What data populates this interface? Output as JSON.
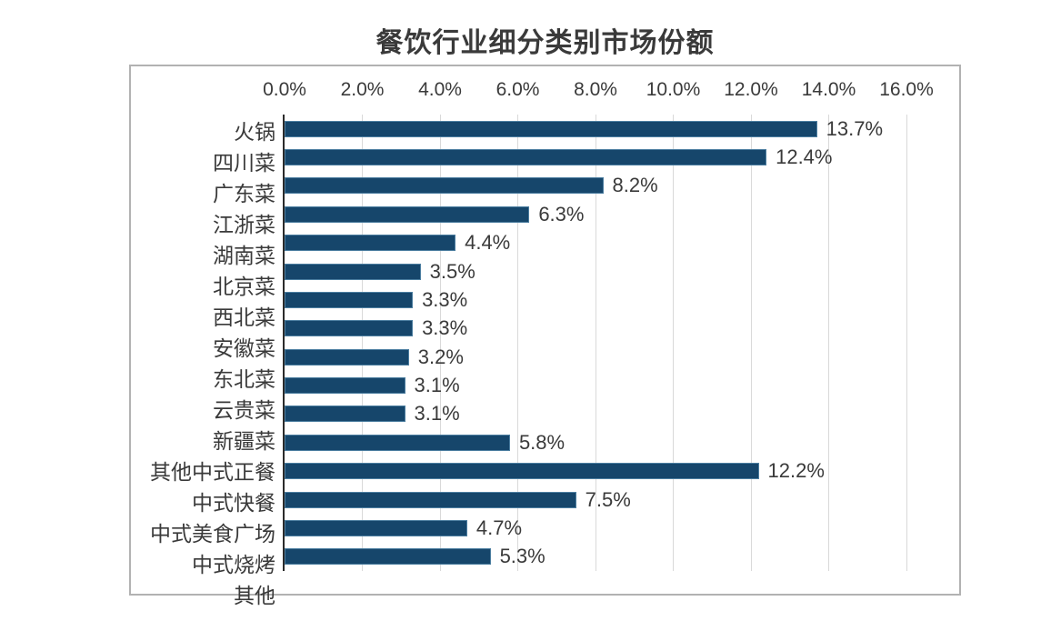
{
  "chart_data": {
    "type": "bar",
    "orientation": "horizontal",
    "title": "餐饮行业细分类别市场份额",
    "categories": [
      "火锅",
      "四川菜",
      "广东菜",
      "江浙菜",
      "湖南菜",
      "北京菜",
      "西北菜",
      "安徽菜",
      "东北菜",
      "云贵菜",
      "新疆菜",
      "其他中式正餐",
      "中式快餐",
      "中式美食广场",
      "中式烧烤",
      "其他"
    ],
    "values": [
      13.7,
      12.4,
      8.2,
      6.3,
      4.4,
      3.5,
      3.3,
      3.3,
      3.2,
      3.1,
      3.1,
      5.8,
      12.2,
      7.5,
      4.7,
      5.3
    ],
    "value_labels": [
      "13.7%",
      "12.4%",
      "8.2%",
      "6.3%",
      "4.4%",
      "3.5%",
      "3.3%",
      "3.3%",
      "3.2%",
      "3.1%",
      "3.1%",
      "5.8%",
      "12.2%",
      "7.5%",
      "4.7%",
      "5.3%"
    ],
    "x_ticks": [
      "0.0%",
      "2.0%",
      "4.0%",
      "6.0%",
      "8.0%",
      "10.0%",
      "12.0%",
      "14.0%",
      "16.0%"
    ],
    "xlim": [
      0,
      16
    ],
    "tick_position": "top",
    "grid": true,
    "legend": "none",
    "colors": {
      "bar_fill": "#16466B",
      "bar_border": "#4C7EA0",
      "gridline": "#D9D9D9",
      "axis_line": "#2B2B2B",
      "frame_border": "#B2B2B2",
      "text": "#3A3A3A",
      "background": "#FFFFFF"
    }
  }
}
